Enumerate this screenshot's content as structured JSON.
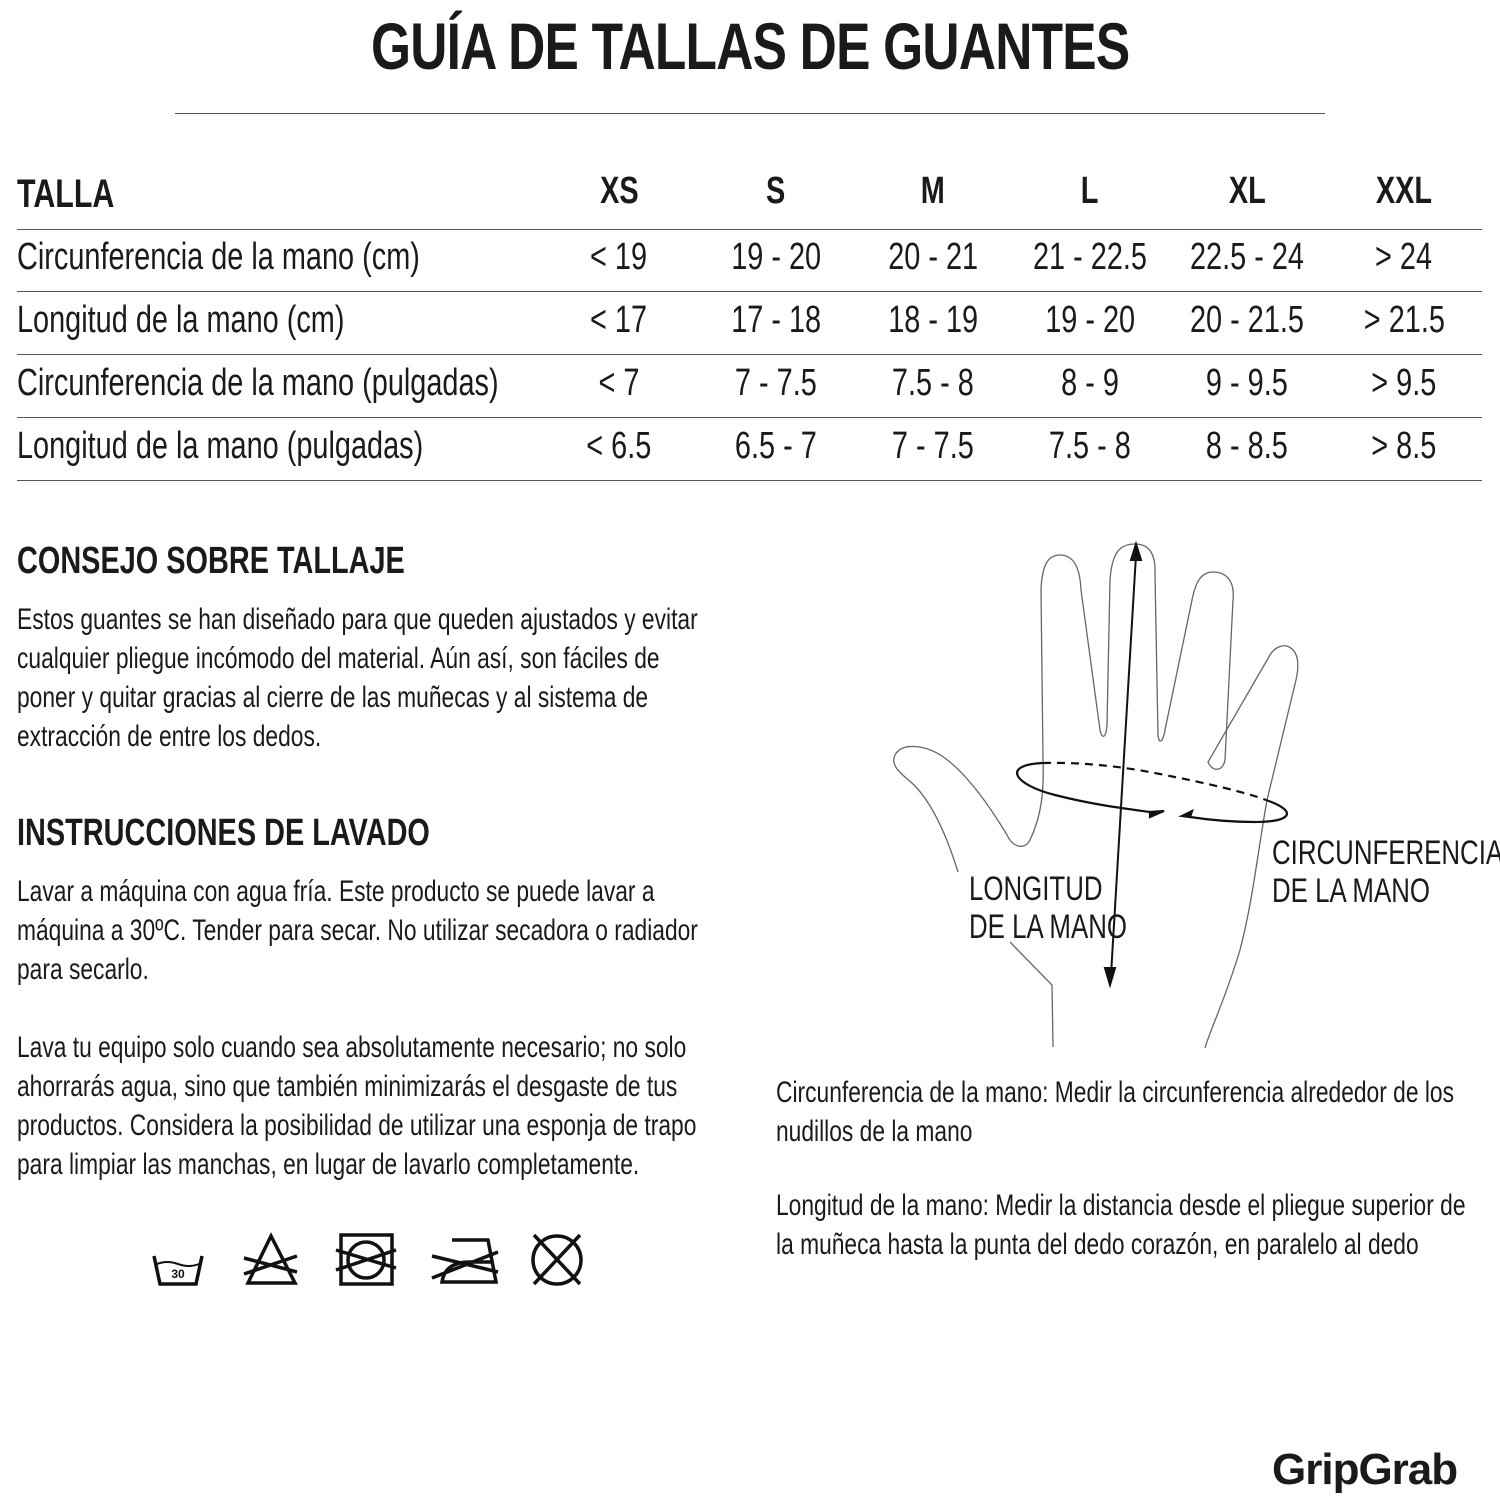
{
  "title": "GUÍA DE TALLAS DE GUANTES",
  "table": {
    "header": [
      "TALLA",
      "XS",
      "S",
      "M",
      "L",
      "XL",
      "XXL"
    ],
    "rows": [
      {
        "label": "Circunferencia de la mano (cm)",
        "values": [
          "< 19",
          "19 - 20",
          "20 - 21",
          "21 - 22.5",
          "22.5 - 24",
          "> 24"
        ]
      },
      {
        "label": "Longitud de la mano (cm)",
        "values": [
          "< 17",
          "17 - 18",
          "18 - 19",
          "19 - 20",
          "20 - 21.5",
          "> 21.5"
        ]
      },
      {
        "label": "Circunferencia de la mano (pulgadas)",
        "values": [
          "< 7",
          "7 - 7.5",
          "7.5 - 8",
          "8 - 9",
          "9 - 9.5",
          "> 9.5"
        ]
      },
      {
        "label": "Longitud de la mano (pulgadas)",
        "values": [
          "< 6.5",
          "6.5 - 7",
          "7 - 7.5",
          "7.5 - 8",
          "8 - 8.5",
          "> 8.5"
        ]
      }
    ]
  },
  "fit_advice": {
    "heading": "CONSEJO SOBRE TALLAJE",
    "text": "Estos guantes se han diseñado para que queden ajustados y evitar cualquier pliegue incómodo del material. Aún así, son fáciles de poner y quitar gracias al cierre de las muñecas y al sistema de extracción de entre los dedos."
  },
  "washing": {
    "heading": "INSTRUCCIONES DE LAVADO",
    "text1": "Lavar a máquina con agua fría. Este producto se puede lavar a máquina a 30ºC. Tender para secar. No utilizar secadora o radiador para secarlo.",
    "text2": "Lava tu equipo solo cuando sea absolutamente necesario; no solo ahorrarás agua, sino que también minimizarás el desgaste de tus productos. Considera la posibilidad de utilizar una esponja de trapo para limpiar las manchas, en lugar de lavarlo completamente.",
    "icons": [
      "wash-30-icon",
      "no-bleach-icon",
      "no-tumble-dry-icon",
      "no-iron-icon",
      "no-dry-clean-icon"
    ],
    "wash_temp": "30"
  },
  "diagram": {
    "length_label_1": "LONGITUD",
    "length_label_2": "DE LA MANO",
    "circ_label_1": "CIRCUNFERENCIA",
    "circ_label_2": "DE LA MANO"
  },
  "notes": {
    "circumference": "Circunferencia de la mano: Medir la circunferencia alrededor de los nudillos de la mano",
    "length": "Longitud de la mano: Medir la distancia desde el pliegue superior de la muñeca hasta la punta del dedo corazón, en paralelo al dedo"
  },
  "logo": "GripGrab"
}
